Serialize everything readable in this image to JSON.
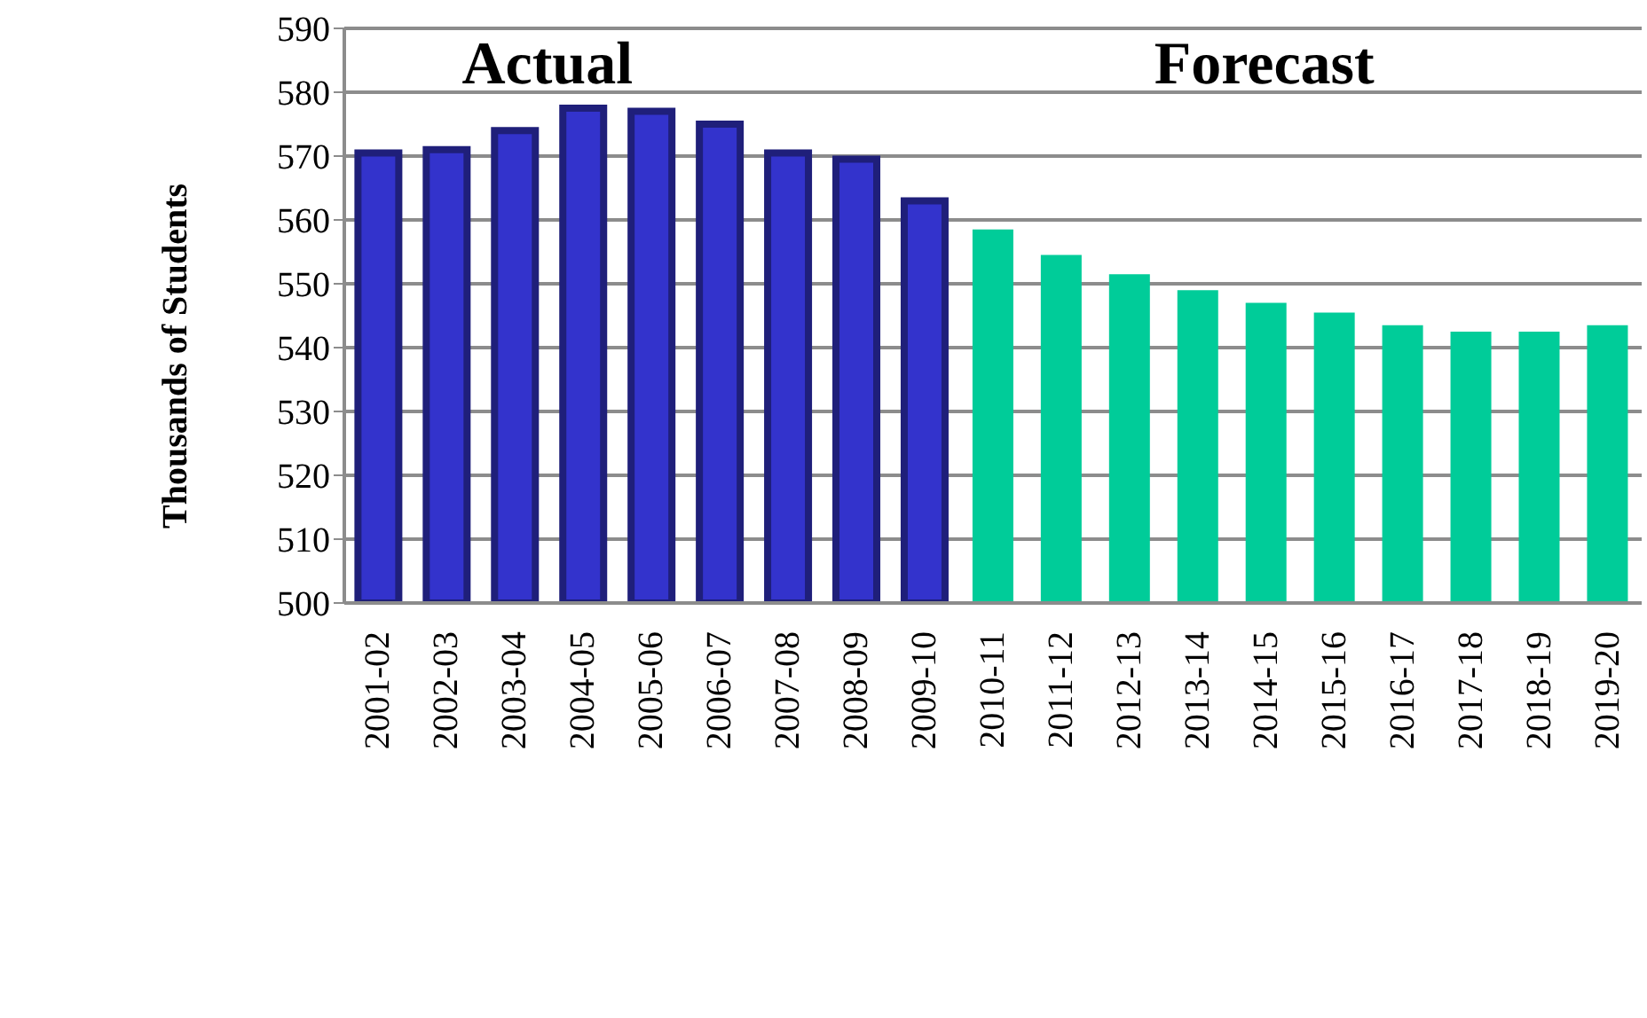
{
  "chart_data": {
    "type": "bar",
    "ylabel": "Thousands of Students",
    "categories": [
      "2001-02",
      "2002-03",
      "2003-04",
      "2004-05",
      "2005-06",
      "2006-07",
      "2007-08",
      "2008-09",
      "2009-10",
      "2010-11",
      "2011-12",
      "2012-13",
      "2013-14",
      "2014-15",
      "2015-16",
      "2016-17",
      "2017-18",
      "2018-19",
      "2019-20"
    ],
    "stacked": true,
    "series": [
      {
        "name": "Actual",
        "color": "#3333cc",
        "values": [
          570.5,
          571,
          574,
          577.5,
          577,
          575,
          570.5,
          569.5,
          563,
          null,
          null,
          null,
          null,
          null,
          null,
          null,
          null,
          null,
          null
        ]
      },
      {
        "name": "Forecast",
        "color": "#00cc99",
        "values": [
          null,
          null,
          null,
          null,
          null,
          null,
          null,
          null,
          null,
          558.5,
          554.5,
          551.5,
          549,
          547,
          545.5,
          543.5,
          542.5,
          542.5,
          543.5
        ]
      }
    ],
    "ylim": [
      500,
      590
    ],
    "yticks": [
      500,
      510,
      520,
      530,
      540,
      550,
      560,
      570,
      580,
      590
    ],
    "grid": "y"
  }
}
